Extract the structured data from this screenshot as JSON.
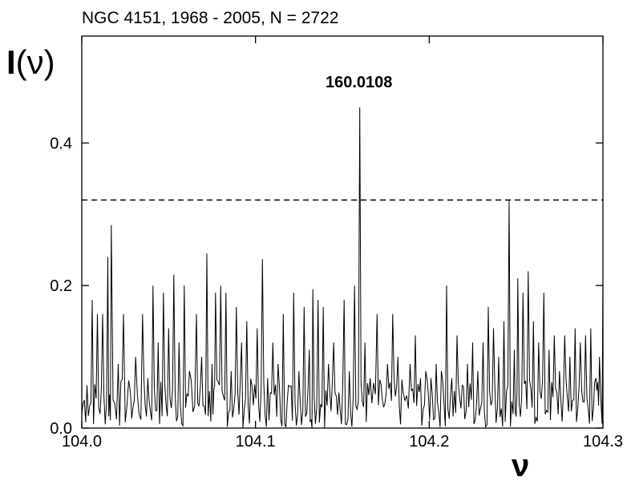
{
  "chart_data": {
    "type": "line",
    "title": "NGC 4151,  1968 - 2005,  N = 2722",
    "ylabel_main": "I",
    "ylabel_arg": "(ν)",
    "xlabel": "ν",
    "xlim": [
      104.0,
      104.3
    ],
    "ylim": [
      0.0,
      0.55
    ],
    "xticks": [
      "104.0",
      "104.1",
      "104.2",
      "104.3"
    ],
    "yticks": [
      "0.0",
      "0.2",
      "0.4"
    ],
    "threshold": 0.32,
    "annotation": {
      "text": "160.0108",
      "x": 104.16,
      "y": 0.45
    },
    "grid": false,
    "peaks": [
      {
        "x": 104.003,
        "y": 0.06
      },
      {
        "x": 104.006,
        "y": 0.18
      },
      {
        "x": 104.009,
        "y": 0.16
      },
      {
        "x": 104.012,
        "y": 0.16
      },
      {
        "x": 104.015,
        "y": 0.24
      },
      {
        "x": 104.017,
        "y": 0.285
      },
      {
        "x": 104.021,
        "y": 0.09
      },
      {
        "x": 104.024,
        "y": 0.16
      },
      {
        "x": 104.028,
        "y": 0.05
      },
      {
        "x": 104.031,
        "y": 0.1
      },
      {
        "x": 104.035,
        "y": 0.16
      },
      {
        "x": 104.038,
        "y": 0.07
      },
      {
        "x": 104.041,
        "y": 0.2
      },
      {
        "x": 104.044,
        "y": 0.12
      },
      {
        "x": 104.047,
        "y": 0.19
      },
      {
        "x": 104.05,
        "y": 0.14
      },
      {
        "x": 104.053,
        "y": 0.215
      },
      {
        "x": 104.056,
        "y": 0.12
      },
      {
        "x": 104.059,
        "y": 0.2
      },
      {
        "x": 104.062,
        "y": 0.08
      },
      {
        "x": 104.066,
        "y": 0.16
      },
      {
        "x": 104.069,
        "y": 0.1
      },
      {
        "x": 104.072,
        "y": 0.245
      },
      {
        "x": 104.075,
        "y": 0.09
      },
      {
        "x": 104.077,
        "y": 0.19
      },
      {
        "x": 104.08,
        "y": 0.2
      },
      {
        "x": 104.083,
        "y": 0.19
      },
      {
        "x": 104.086,
        "y": 0.08
      },
      {
        "x": 104.089,
        "y": 0.17
      },
      {
        "x": 104.092,
        "y": 0.12
      },
      {
        "x": 104.095,
        "y": 0.15
      },
      {
        "x": 104.098,
        "y": 0.06
      },
      {
        "x": 104.101,
        "y": 0.14
      },
      {
        "x": 104.104,
        "y": 0.237
      },
      {
        "x": 104.107,
        "y": 0.07
      },
      {
        "x": 104.11,
        "y": 0.12
      },
      {
        "x": 104.113,
        "y": 0.09
      },
      {
        "x": 104.116,
        "y": 0.16
      },
      {
        "x": 104.119,
        "y": 0.06
      },
      {
        "x": 104.122,
        "y": 0.19
      },
      {
        "x": 104.125,
        "y": 0.08
      },
      {
        "x": 104.128,
        "y": 0.17
      },
      {
        "x": 104.131,
        "y": 0.11
      },
      {
        "x": 104.133,
        "y": 0.195
      },
      {
        "x": 104.136,
        "y": 0.18
      },
      {
        "x": 104.139,
        "y": 0.17
      },
      {
        "x": 104.142,
        "y": 0.09
      },
      {
        "x": 104.145,
        "y": 0.12
      },
      {
        "x": 104.148,
        "y": 0.05
      },
      {
        "x": 104.151,
        "y": 0.18
      },
      {
        "x": 104.154,
        "y": 0.08
      },
      {
        "x": 104.157,
        "y": 0.2
      },
      {
        "x": 104.16,
        "y": 0.45
      },
      {
        "x": 104.163,
        "y": 0.12
      },
      {
        "x": 104.166,
        "y": 0.07
      },
      {
        "x": 104.17,
        "y": 0.16
      },
      {
        "x": 104.173,
        "y": 0.04
      },
      {
        "x": 104.176,
        "y": 0.09
      },
      {
        "x": 104.179,
        "y": 0.16
      },
      {
        "x": 104.182,
        "y": 0.1
      },
      {
        "x": 104.185,
        "y": 0.05
      },
      {
        "x": 104.189,
        "y": 0.09
      },
      {
        "x": 104.192,
        "y": 0.13
      },
      {
        "x": 104.195,
        "y": 0.07
      },
      {
        "x": 104.198,
        "y": 0.08
      },
      {
        "x": 104.201,
        "y": 0.07
      },
      {
        "x": 104.204,
        "y": 0.09
      },
      {
        "x": 104.207,
        "y": 0.08
      },
      {
        "x": 104.21,
        "y": 0.2
      },
      {
        "x": 104.213,
        "y": 0.07
      },
      {
        "x": 104.216,
        "y": 0.13
      },
      {
        "x": 104.219,
        "y": 0.06
      },
      {
        "x": 104.222,
        "y": 0.09
      },
      {
        "x": 104.225,
        "y": 0.12
      },
      {
        "x": 104.228,
        "y": 0.08
      },
      {
        "x": 104.231,
        "y": 0.12
      },
      {
        "x": 104.234,
        "y": 0.17
      },
      {
        "x": 104.237,
        "y": 0.14
      },
      {
        "x": 104.24,
        "y": 0.1
      },
      {
        "x": 104.243,
        "y": 0.15
      },
      {
        "x": 104.246,
        "y": 0.32
      },
      {
        "x": 104.249,
        "y": 0.11
      },
      {
        "x": 104.251,
        "y": 0.21
      },
      {
        "x": 104.254,
        "y": 0.19
      },
      {
        "x": 104.257,
        "y": 0.22
      },
      {
        "x": 104.26,
        "y": 0.15
      },
      {
        "x": 104.263,
        "y": 0.12
      },
      {
        "x": 104.266,
        "y": 0.19
      },
      {
        "x": 104.269,
        "y": 0.11
      },
      {
        "x": 104.272,
        "y": 0.13
      },
      {
        "x": 104.275,
        "y": 0.08
      },
      {
        "x": 104.278,
        "y": 0.13
      },
      {
        "x": 104.281,
        "y": 0.1
      },
      {
        "x": 104.284,
        "y": 0.14
      },
      {
        "x": 104.287,
        "y": 0.12
      },
      {
        "x": 104.29,
        "y": 0.13
      },
      {
        "x": 104.293,
        "y": 0.14
      },
      {
        "x": 104.296,
        "y": 0.07
      },
      {
        "x": 104.298,
        "y": 0.1
      },
      {
        "x": 104.3,
        "y": 0.21
      }
    ]
  }
}
